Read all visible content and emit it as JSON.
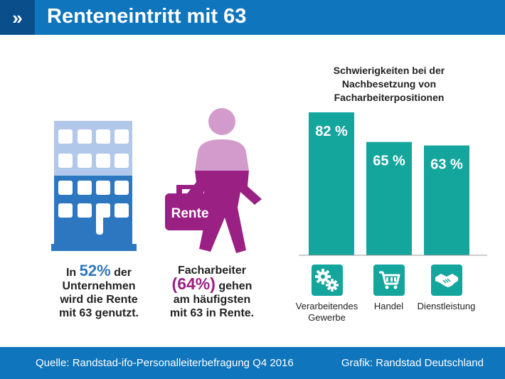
{
  "header": {
    "badge": "»",
    "title": "Renteneintritt mit 63"
  },
  "stats": {
    "companies": {
      "pre": "In ",
      "value": "52%",
      "post": " der",
      "line2": "Unternehmen",
      "line3": "wird die Rente",
      "line4": "mit 63 genutzt."
    },
    "workers": {
      "line1": "Facharbeiter",
      "value": "(64%)",
      "post": " gehen",
      "line3": "am häufigsten",
      "line4": "mit 63 in Rente."
    }
  },
  "briefcase_label": "Rente",
  "chart_data": {
    "type": "bar",
    "title": "Schwierigkeiten bei der Nachbesetzung von Facharbeiterpositionen",
    "title_lines": [
      "Schwierigkeiten bei der",
      "Nachbesetzung von",
      "Facharbeiterpositionen"
    ],
    "categories": [
      "Verarbeitendes Gewerbe",
      "Handel",
      "Dienstleistung"
    ],
    "category_lines": [
      [
        "Verarbeitendes",
        "Gewerbe"
      ],
      [
        "Handel"
      ],
      [
        "Dienstleistung"
      ]
    ],
    "values": [
      82,
      65,
      63
    ],
    "value_labels": [
      "82 %",
      "65 %",
      "63 %"
    ],
    "unit": "%",
    "ylim": [
      0,
      82
    ],
    "bar_color": "#14a59c",
    "icons": [
      "gears-icon",
      "shopping-cart-icon",
      "handshake-icon"
    ]
  },
  "colors": {
    "header": "#0f75bc",
    "badge": "#0a4f8c",
    "bar": "#14a59c",
    "purple": "#9a2183",
    "light_purple": "#d39bcb",
    "blue": "#2d77c0",
    "light_blue": "#b2c8ea"
  },
  "footer": {
    "source": "Quelle: Randstad-ifo-Personalleiterbefragung Q4 2016",
    "credit": "Grafik: Randstad Deutschland"
  }
}
